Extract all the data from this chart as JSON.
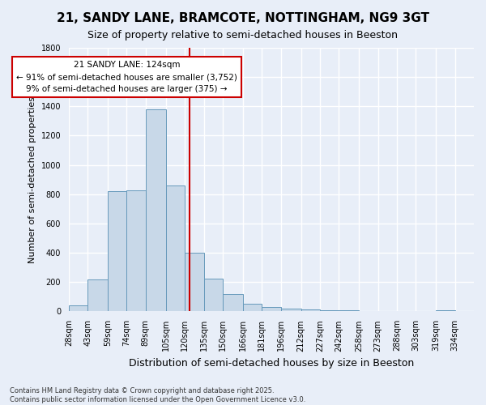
{
  "title": "21, SANDY LANE, BRAMCOTE, NOTTINGHAM, NG9 3GT",
  "subtitle": "Size of property relative to semi-detached houses in Beeston",
  "xlabel": "Distribution of semi-detached houses by size in Beeston",
  "ylabel": "Number of semi-detached properties",
  "footnote": "Contains HM Land Registry data © Crown copyright and database right 2025.\nContains public sector information licensed under the Open Government Licence v3.0.",
  "bin_edges": [
    28,
    43,
    59,
    74,
    89,
    105,
    120,
    135,
    150,
    166,
    181,
    196,
    212,
    227,
    242,
    258,
    273,
    288,
    303,
    319,
    334
  ],
  "bin_labels": [
    "28sqm",
    "43sqm",
    "59sqm",
    "74sqm",
    "89sqm",
    "105sqm",
    "120sqm",
    "135sqm",
    "150sqm",
    "166sqm",
    "181sqm",
    "196sqm",
    "212sqm",
    "227sqm",
    "242sqm",
    "258sqm",
    "273sqm",
    "288sqm",
    "303sqm",
    "319sqm",
    "334sqm"
  ],
  "counts": [
    40,
    220,
    820,
    825,
    1380,
    860,
    400,
    225,
    120,
    50,
    30,
    20,
    15,
    10,
    10,
    5,
    0,
    0,
    0,
    10
  ],
  "bar_color": "#c8d8e8",
  "bar_edgecolor": "#6699bb",
  "property_size": 124,
  "property_line_color": "#cc0000",
  "annotation_text": "21 SANDY LANE: 124sqm\n← 91% of semi-detached houses are smaller (3,752)\n9% of semi-detached houses are larger (375) →",
  "annotation_box_facecolor": "#ffffff",
  "annotation_box_edgecolor": "#cc0000",
  "ylim": [
    0,
    1800
  ],
  "background_color": "#e8eef8",
  "plot_background": "#e8eef8",
  "grid_color": "#ffffff",
  "title_fontsize": 11,
  "subtitle_fontsize": 9,
  "ylabel_fontsize": 8,
  "xlabel_fontsize": 9,
  "tick_fontsize": 7,
  "footnote_fontsize": 6
}
